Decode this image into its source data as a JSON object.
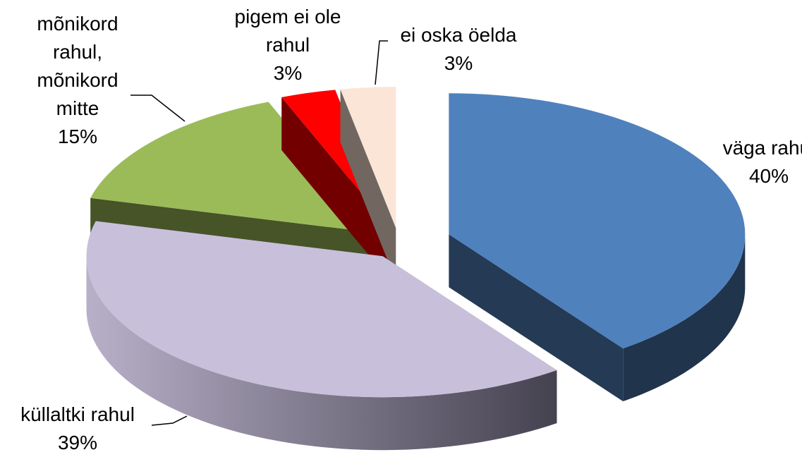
{
  "chart_data": {
    "type": "pie",
    "categories": [
      "väga rahul",
      "küllaltki rahul",
      "mõnikord rahul, mõnikord mitte",
      "pigem ei ole rahul",
      "ei oska öelda"
    ],
    "values": [
      40,
      39,
      15,
      3,
      3
    ],
    "value_labels": [
      "40%",
      "39%",
      "15%",
      "3%",
      "3%"
    ],
    "colors": [
      "#4f81bd",
      "#c8c0da",
      "#9bbb59",
      "#ff0000",
      "#fbe5d6"
    ]
  }
}
